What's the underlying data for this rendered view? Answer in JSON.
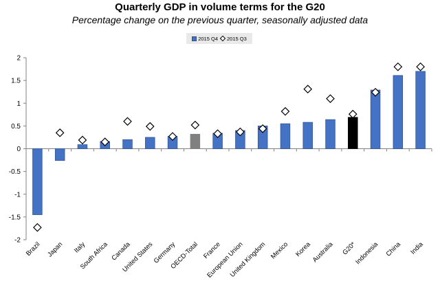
{
  "chart_data": {
    "type": "bar",
    "title": "Quarterly GDP in volume terms for the G20",
    "subtitle": "Percentage change on the previous quarter, seasonally adjusted data",
    "xlabel": "",
    "ylabel": "",
    "ylim": [
      -2,
      2
    ],
    "yticks": [
      -2,
      -1.5,
      -1,
      -0.5,
      0,
      0.5,
      1,
      1.5,
      2
    ],
    "grid": false,
    "legend_position": "top-center",
    "categories": [
      "Brazil",
      "Japan",
      "Italy",
      "South Africa",
      "Canada",
      "United States",
      "Germany",
      "OECD-Total",
      "France",
      "European Union",
      "United Kingdom",
      "Mexico",
      "Korea",
      "Australia",
      "G20*",
      "Indonesia",
      "China",
      "India"
    ],
    "series": [
      {
        "name": "2015 Q4",
        "mark": "bar",
        "values": [
          -1.45,
          -0.26,
          0.09,
          0.16,
          0.2,
          0.25,
          0.27,
          0.32,
          0.34,
          0.4,
          0.5,
          0.55,
          0.58,
          0.64,
          0.69,
          1.29,
          1.61,
          1.7
        ],
        "highlight": {
          "OECD-Total": "#808080",
          "G20*": "#000000"
        }
      },
      {
        "name": "2015 Q3",
        "mark": "diamond",
        "values": [
          -1.73,
          0.35,
          0.19,
          0.15,
          0.6,
          0.49,
          0.27,
          0.52,
          0.33,
          0.37,
          0.44,
          0.82,
          1.31,
          1.1,
          0.76,
          1.24,
          1.8,
          1.8
        ]
      }
    ],
    "colors": {
      "bar": "#4472c4",
      "bar_edge": "#2c4f8a",
      "axis": "#808080"
    }
  }
}
